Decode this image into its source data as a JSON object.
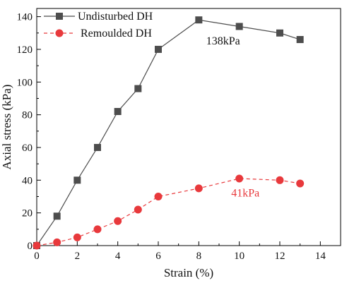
{
  "chart_data": {
    "type": "line",
    "xlabel": "Strain (%)",
    "ylabel": "Axial stress (kPa)",
    "xlim": [
      0,
      15
    ],
    "ylim": [
      0,
      145
    ],
    "x_ticks": [
      0,
      2,
      4,
      6,
      8,
      10,
      12,
      14
    ],
    "y_ticks": [
      0,
      20,
      40,
      60,
      80,
      100,
      120,
      140
    ],
    "grid": false,
    "legend_position": "top-left",
    "series": [
      {
        "name": "Undisturbed DH",
        "color": "#4d4d4d",
        "marker": "square",
        "line_style": "solid",
        "x": [
          0,
          1,
          2,
          3,
          4,
          5,
          6,
          8,
          10,
          12,
          13
        ],
        "y": [
          0,
          18,
          40,
          60,
          82,
          96,
          120,
          138,
          134,
          130,
          126
        ]
      },
      {
        "name": "Remoulded DH",
        "color": "#e8393c",
        "marker": "circle",
        "line_style": "dashed",
        "x": [
          0,
          1,
          2,
          3,
          4,
          5,
          6,
          8,
          10,
          12,
          13
        ],
        "y": [
          0,
          2,
          5,
          10,
          15,
          22,
          30,
          35,
          41,
          40,
          38
        ]
      }
    ],
    "annotations": [
      {
        "text": "138kPa",
        "x": 9.2,
        "y": 123,
        "color": "#111111"
      },
      {
        "text": "41kPa",
        "x": 10.3,
        "y": 30,
        "color": "#e8393c"
      }
    ]
  }
}
